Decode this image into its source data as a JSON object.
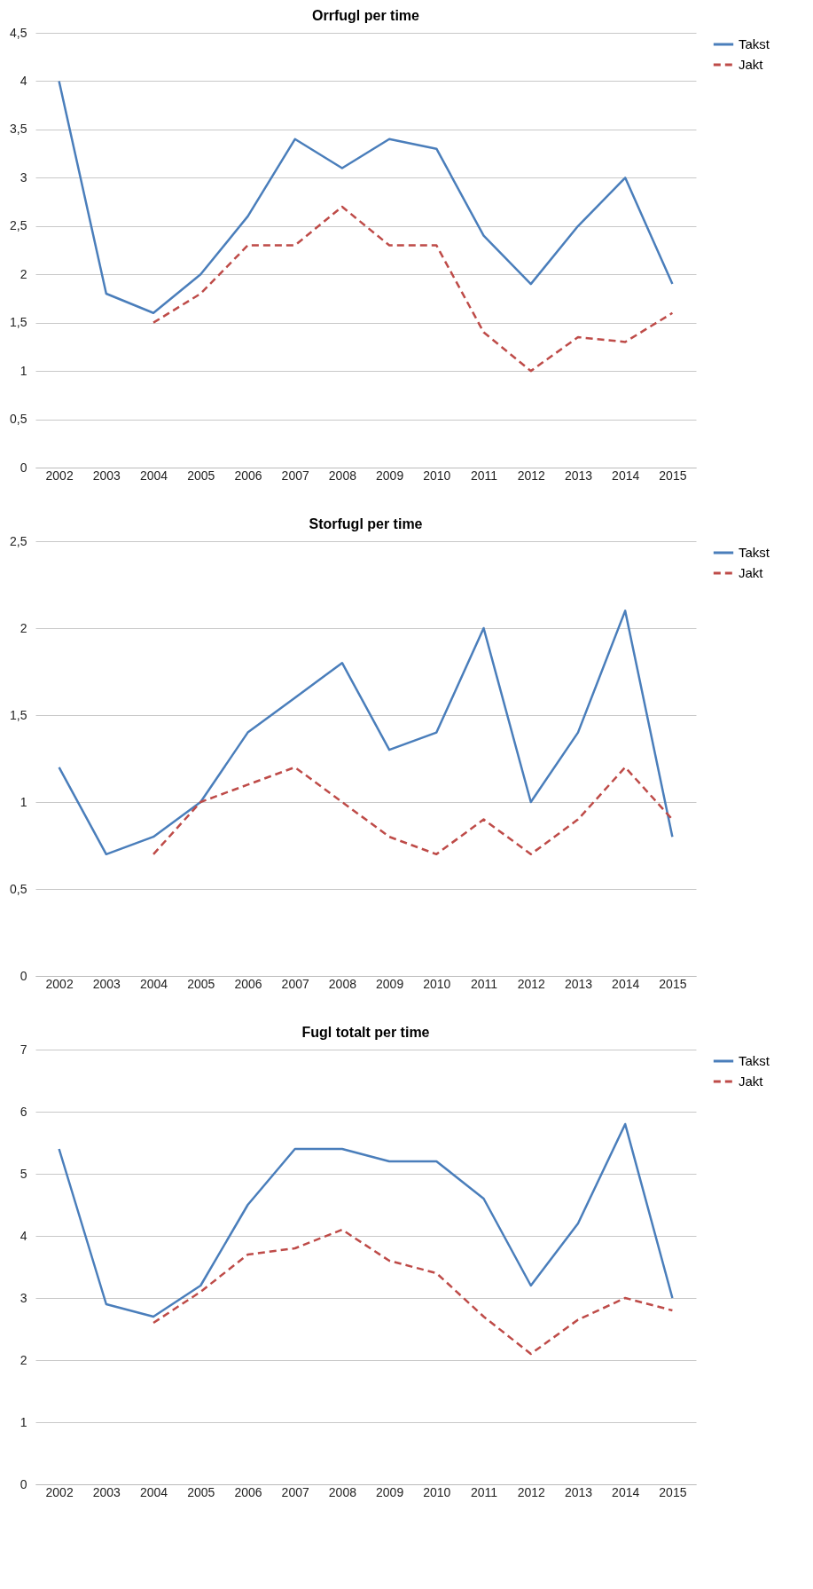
{
  "chart_data": [
    {
      "type": "line",
      "title": "Orrfugl per time",
      "categories": [
        "2002",
        "2003",
        "2004",
        "2005",
        "2006",
        "2007",
        "2008",
        "2009",
        "2010",
        "2011",
        "2012",
        "2013",
        "2014",
        "2015"
      ],
      "ylim": [
        0,
        4.5
      ],
      "yticks": [
        0,
        {
          "value": 0.5,
          "label": "0,5"
        },
        1,
        {
          "value": 1.5,
          "label": "1,5"
        },
        2,
        {
          "value": 2.5,
          "label": "2,5"
        },
        3,
        {
          "value": 3.5,
          "label": "3,5"
        },
        4,
        {
          "value": 4.5,
          "label": "4,5"
        }
      ],
      "grid": "y",
      "legend": "right",
      "series": [
        {
          "name": "Takst",
          "color": "#4a7ebb",
          "line_style": "solid",
          "values": [
            4,
            1.8,
            1.6,
            2,
            2.6,
            3.4,
            3.1,
            3.4,
            3.3,
            2.4,
            1.9,
            2.5,
            3,
            1.9
          ]
        },
        {
          "name": "Jakt",
          "color": "#be4b48",
          "line_style": "dashed",
          "values": [
            null,
            null,
            1.5,
            1.8,
            2.3,
            2.3,
            2.7,
            2.3,
            2.3,
            1.4,
            1,
            1.35,
            1.3,
            1.6
          ]
        }
      ]
    },
    {
      "type": "line",
      "title": "Storfugl per time",
      "categories": [
        "2002",
        "2003",
        "2004",
        "2005",
        "2006",
        "2007",
        "2008",
        "2009",
        "2010",
        "2011",
        "2012",
        "2013",
        "2014",
        "2015"
      ],
      "ylim": [
        0,
        2.5
      ],
      "yticks": [
        0,
        {
          "value": 0.5,
          "label": "0,5"
        },
        1,
        {
          "value": 1.5,
          "label": "1,5"
        },
        2,
        {
          "value": 2.5,
          "label": "2,5"
        }
      ],
      "grid": "y",
      "legend": "right",
      "series": [
        {
          "name": "Takst",
          "color": "#4a7ebb",
          "line_style": "solid",
          "values": [
            1.2,
            0.7,
            0.8,
            1,
            1.4,
            1.6,
            1.8,
            1.3,
            1.4,
            2,
            1,
            1.4,
            2.1,
            0.8
          ]
        },
        {
          "name": "Jakt",
          "color": "#be4b48",
          "line_style": "dashed",
          "values": [
            null,
            null,
            0.7,
            1,
            1.1,
            1.2,
            1,
            0.8,
            0.7,
            0.9,
            0.7,
            0.9,
            1.2,
            0.9
          ]
        }
      ]
    },
    {
      "type": "line",
      "title": "Fugl totalt per time",
      "categories": [
        "2002",
        "2003",
        "2004",
        "2005",
        "2006",
        "2007",
        "2008",
        "2009",
        "2010",
        "2011",
        "2012",
        "2013",
        "2014",
        "2015"
      ],
      "ylim": [
        0,
        7
      ],
      "yticks": [
        0,
        1,
        2,
        3,
        4,
        5,
        6,
        7
      ],
      "grid": "y",
      "legend": "right",
      "series": [
        {
          "name": "Takst",
          "color": "#4a7ebb",
          "line_style": "solid",
          "values": [
            5.4,
            2.9,
            2.7,
            3.2,
            4.5,
            5.4,
            5.4,
            5.2,
            5.2,
            4.6,
            3.2,
            4.2,
            5.8,
            3
          ]
        },
        {
          "name": "Jakt",
          "color": "#be4b48",
          "line_style": "dashed",
          "values": [
            null,
            null,
            2.6,
            3.1,
            3.7,
            3.8,
            4.1,
            3.6,
            3.4,
            2.7,
            2.1,
            2.65,
            3,
            2.8
          ]
        }
      ]
    }
  ]
}
